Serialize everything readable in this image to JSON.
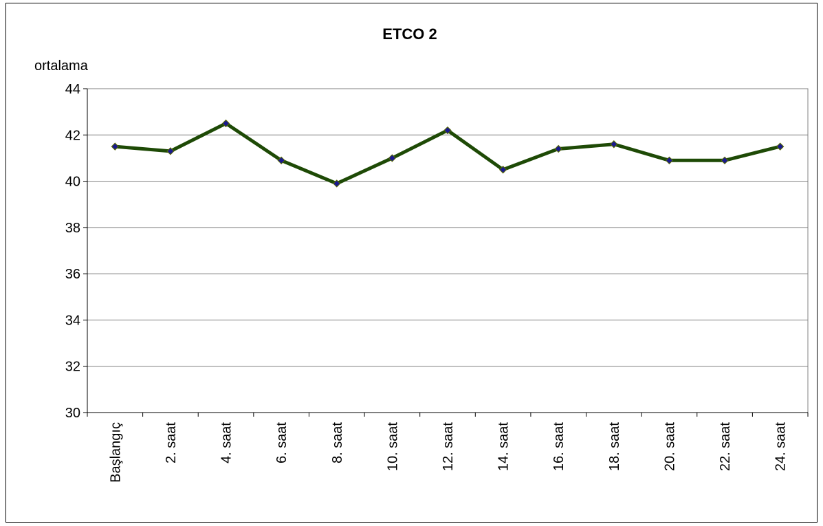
{
  "chart_data": {
    "type": "line",
    "title": "ETCO 2",
    "y_label": "ortalama",
    "categories": [
      "Başlangıç",
      "2. saat",
      "4. saat",
      "6. saat",
      "8. saat",
      "10. saat",
      "12. saat",
      "14. saat",
      "16. saat",
      "18. saat",
      "20. saat",
      "22. saat",
      "24. saat"
    ],
    "series": [
      {
        "color": "#1e4a06",
        "marker_color": "#1a1a8c",
        "values": [
          41.5,
          41.3,
          42.5,
          40.9,
          39.9,
          41.0,
          42.2,
          40.5,
          41.4,
          41.6,
          40.9,
          40.9,
          41.5
        ]
      }
    ],
    "ylim": [
      30,
      44
    ],
    "yticks": [
      30,
      32,
      34,
      36,
      38,
      40,
      42,
      44
    ],
    "grid": true
  }
}
